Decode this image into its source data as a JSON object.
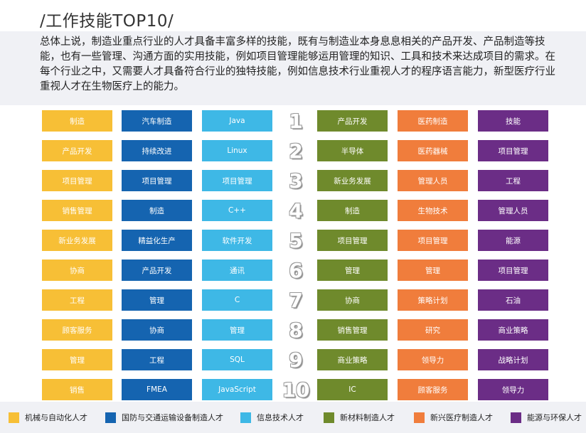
{
  "title": "/工作技能TOP10/",
  "intro": "总体上说，制造业重点行业的人才具备丰富多样的技能，既有与制造业本身息息相关的产品开发、产品制造等技能，也有一些管理、沟通方面的实用技能，例如项目管理能够运用管理的知识、工具和技术来达成项目的需求。在每个行业之中，又需要人才具备符合行业的独特技能，例如信息技术行业重视人才的程序语言能力，新型医疗行业重视人才在生物医疗上的能力。",
  "colors": {
    "yellow": "#f7bf36",
    "darkblue": "#1564b0",
    "lightblue": "#3eb8e6",
    "olive": "#6f8a2c",
    "orange": "#f07d3c",
    "purple": "#6b2d86"
  },
  "ranks": [
    "1",
    "2",
    "3",
    "4",
    "5",
    "6",
    "7",
    "8",
    "9",
    "10"
  ],
  "columns": [
    {
      "industry": "机械与自动化人才",
      "color": "#f7bf36",
      "skills": [
        "制造",
        "产品开发",
        "项目管理",
        "销售管理",
        "新业务发展",
        "协商",
        "工程",
        "顾客服务",
        "管理",
        "销售"
      ]
    },
    {
      "industry": "国防与交通运输设备制造人才",
      "color": "#1564b0",
      "skills": [
        "汽车制造",
        "持续改进",
        "项目管理",
        "制造",
        "精益化生产",
        "产品开发",
        "管理",
        "协商",
        "工程",
        "FMEA"
      ]
    },
    {
      "industry": "信息技术人才",
      "color": "#3eb8e6",
      "skills": [
        "Java",
        "Linux",
        "项目管理",
        "C++",
        "软件开发",
        "通讯",
        "C",
        "管理",
        "SQL",
        "JavaScript"
      ]
    },
    {
      "industry": "新材料制造人才",
      "color": "#6f8a2c",
      "skills": [
        "产品开发",
        "半导体",
        "新业务发展",
        "制造",
        "项目管理",
        "管理",
        "协商",
        "销售管理",
        "商业策略",
        "IC"
      ]
    },
    {
      "industry": "新兴医疗制造人才",
      "color": "#f07d3c",
      "skills": [
        "医药制造",
        "医药器械",
        "管理人员",
        "生物技术",
        "项目管理",
        "管理",
        "策略计划",
        "研究",
        "领导力",
        "顾客服务"
      ]
    },
    {
      "industry": "能源与环保人才",
      "color": "#6b2d86",
      "skills": [
        "技能",
        "项目管理",
        "工程",
        "管理人员",
        "能源",
        "项目管理",
        "石油",
        "商业策略",
        "战略计划",
        "领导力"
      ]
    }
  ]
}
